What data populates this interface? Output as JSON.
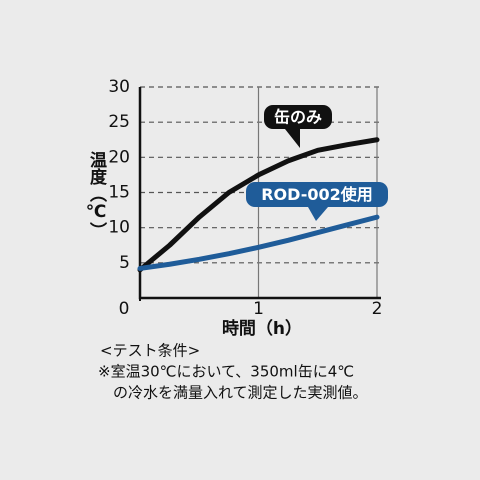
{
  "chart_data": {
    "type": "line",
    "y_label": "温度（℃）",
    "x_label": "時間（h）",
    "x": [
      0,
      0.25,
      0.5,
      0.75,
      1,
      1.25,
      1.5,
      1.75,
      2
    ],
    "series": [
      {
        "name": "缶のみ",
        "color": "#111111",
        "values": [
          4,
          7.5,
          11.5,
          15,
          17.5,
          19.5,
          21,
          21.8,
          22.5
        ]
      },
      {
        "name": "ROD-002使用",
        "color": "#1f5c99",
        "values": [
          4.2,
          4.8,
          5.5,
          6.3,
          7.2,
          8.2,
          9.3,
          10.4,
          11.5
        ]
      }
    ],
    "xlim": [
      0,
      2
    ],
    "xticks": [
      0,
      1,
      2
    ],
    "ylim": [
      0,
      30
    ],
    "yticks": [
      5,
      10,
      15,
      20,
      25,
      30
    ],
    "grid": true,
    "notes": [
      "<テスト条件>",
      "※室温30℃において、350ml缶に4℃",
      "の冷水を満量入れて測定した実測値。"
    ]
  }
}
